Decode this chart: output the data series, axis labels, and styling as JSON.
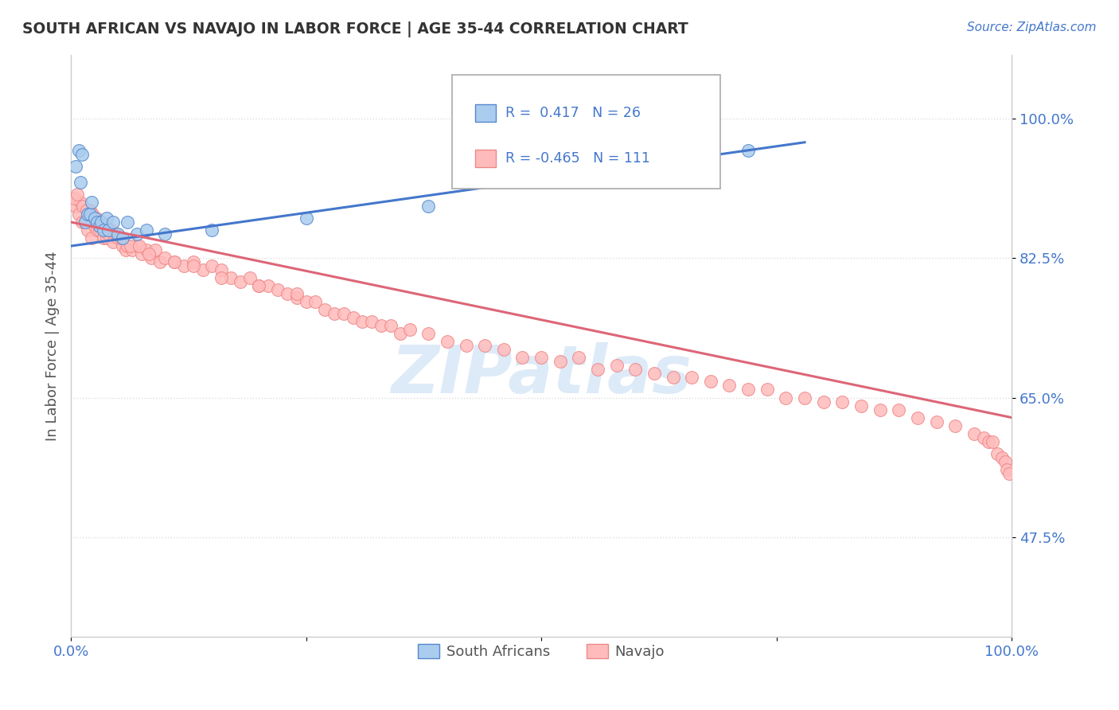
{
  "title": "SOUTH AFRICAN VS NAVAJO IN LABOR FORCE | AGE 35-44 CORRELATION CHART",
  "source": "Source: ZipAtlas.com",
  "ylabel": "In Labor Force | Age 35-44",
  "xlim": [
    0.0,
    1.0
  ],
  "ylim": [
    0.35,
    1.08
  ],
  "yticks": [
    0.475,
    0.65,
    0.825,
    1.0
  ],
  "ytick_labels": [
    "47.5%",
    "65.0%",
    "82.5%",
    "100.0%"
  ],
  "legend_labels": [
    "South Africans",
    "Navajo"
  ],
  "blue_R": 0.417,
  "blue_N": 26,
  "pink_R": -0.465,
  "pink_N": 111,
  "blue_color": "#AACCEE",
  "pink_color": "#FFBBBB",
  "blue_edge_color": "#5588CC",
  "pink_edge_color": "#EE8888",
  "blue_line_color": "#4477CC",
  "pink_line_color": "#DD6677",
  "tick_color": "#4477CC",
  "watermark_color": "#AACCEE",
  "background_color": "#FFFFFF",
  "grid_color": "#DDDDDD",
  "title_color": "#333333",
  "source_color": "#4477CC",
  "ylabel_color": "#555555",
  "blue_x": [
    0.005,
    0.008,
    0.01,
    0.012,
    0.015,
    0.018,
    0.02,
    0.022,
    0.025,
    0.028,
    0.03,
    0.032,
    0.035,
    0.038,
    0.04,
    0.045,
    0.05,
    0.055,
    0.06,
    0.07,
    0.08,
    0.1,
    0.15,
    0.25,
    0.38,
    0.72
  ],
  "blue_y": [
    0.94,
    0.96,
    0.92,
    0.955,
    0.87,
    0.88,
    0.88,
    0.895,
    0.875,
    0.87,
    0.865,
    0.87,
    0.86,
    0.875,
    0.86,
    0.87,
    0.855,
    0.85,
    0.87,
    0.855,
    0.86,
    0.855,
    0.86,
    0.875,
    0.89,
    0.96
  ],
  "pink_x": [
    0.005,
    0.008,
    0.01,
    0.012,
    0.015,
    0.018,
    0.02,
    0.022,
    0.025,
    0.028,
    0.03,
    0.032,
    0.035,
    0.038,
    0.04,
    0.045,
    0.05,
    0.055,
    0.058,
    0.06,
    0.065,
    0.07,
    0.075,
    0.08,
    0.085,
    0.09,
    0.095,
    0.1,
    0.11,
    0.12,
    0.13,
    0.14,
    0.15,
    0.16,
    0.17,
    0.18,
    0.19,
    0.2,
    0.21,
    0.22,
    0.23,
    0.24,
    0.25,
    0.26,
    0.27,
    0.28,
    0.29,
    0.3,
    0.31,
    0.32,
    0.33,
    0.34,
    0.35,
    0.36,
    0.38,
    0.4,
    0.42,
    0.44,
    0.46,
    0.48,
    0.5,
    0.52,
    0.54,
    0.56,
    0.58,
    0.6,
    0.62,
    0.64,
    0.66,
    0.68,
    0.7,
    0.72,
    0.74,
    0.76,
    0.78,
    0.8,
    0.82,
    0.84,
    0.86,
    0.88,
    0.9,
    0.92,
    0.94,
    0.96,
    0.97,
    0.975,
    0.98,
    0.985,
    0.99,
    0.993,
    0.995,
    0.997,
    0.003,
    0.007,
    0.013,
    0.017,
    0.023,
    0.027,
    0.033,
    0.037,
    0.043,
    0.048,
    0.053,
    0.063,
    0.073,
    0.083,
    0.11,
    0.13,
    0.16,
    0.2,
    0.24
  ],
  "pink_y": [
    0.89,
    0.88,
    0.895,
    0.87,
    0.87,
    0.86,
    0.885,
    0.85,
    0.865,
    0.86,
    0.86,
    0.87,
    0.85,
    0.85,
    0.855,
    0.845,
    0.85,
    0.84,
    0.835,
    0.84,
    0.835,
    0.84,
    0.83,
    0.835,
    0.825,
    0.835,
    0.82,
    0.825,
    0.82,
    0.815,
    0.82,
    0.81,
    0.815,
    0.81,
    0.8,
    0.795,
    0.8,
    0.79,
    0.79,
    0.785,
    0.78,
    0.775,
    0.77,
    0.77,
    0.76,
    0.755,
    0.755,
    0.75,
    0.745,
    0.745,
    0.74,
    0.74,
    0.73,
    0.735,
    0.73,
    0.72,
    0.715,
    0.715,
    0.71,
    0.7,
    0.7,
    0.695,
    0.7,
    0.685,
    0.69,
    0.685,
    0.68,
    0.675,
    0.675,
    0.67,
    0.665,
    0.66,
    0.66,
    0.65,
    0.65,
    0.645,
    0.645,
    0.64,
    0.635,
    0.635,
    0.625,
    0.62,
    0.615,
    0.605,
    0.6,
    0.595,
    0.595,
    0.58,
    0.575,
    0.57,
    0.56,
    0.555,
    0.9,
    0.905,
    0.89,
    0.885,
    0.88,
    0.875,
    0.87,
    0.865,
    0.86,
    0.855,
    0.85,
    0.84,
    0.84,
    0.83,
    0.82,
    0.815,
    0.8,
    0.79,
    0.78
  ],
  "blue_line_x": [
    0.0,
    0.78
  ],
  "blue_line_y_start": 0.84,
  "blue_line_y_end": 0.97,
  "pink_line_x": [
    0.0,
    1.0
  ],
  "pink_line_y_start": 0.87,
  "pink_line_y_end": 0.625
}
